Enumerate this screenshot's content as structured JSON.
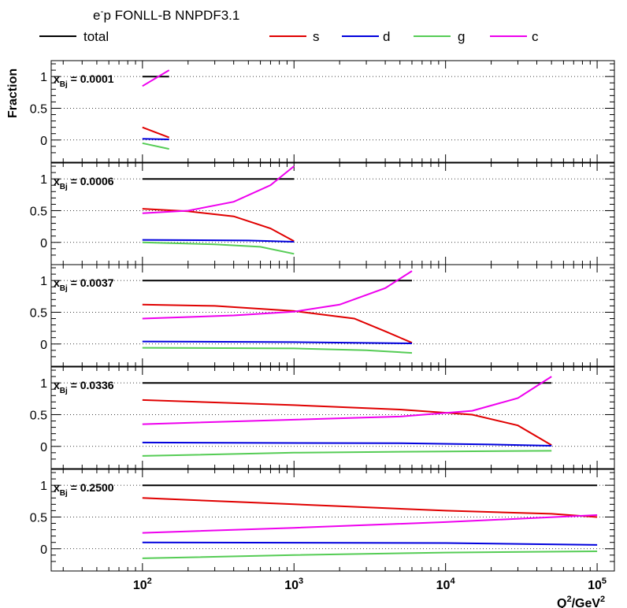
{
  "header": {
    "title_main": "e",
    "title_sup": "-",
    "title_rest": "p FONLL-B NNPDF3.1"
  },
  "legend": [
    {
      "name": "total",
      "color": "#000000"
    },
    {
      "name": "s",
      "color": "#e00000"
    },
    {
      "name": "d",
      "color": "#0000dd"
    },
    {
      "name": "g",
      "color": "#55cc55"
    },
    {
      "name": "c",
      "color": "#ee00ee"
    }
  ],
  "axes": {
    "ylabel": "Fraction",
    "xlabel_q": "Q",
    "xlabel_sup1": "2",
    "xlabel_mid": "/GeV",
    "xlabel_sup2": "2",
    "xtick_base": "10",
    "xtick_exps": [
      "2",
      "3",
      "4",
      "5"
    ],
    "ytick_labels": [
      "1",
      "0.5",
      "0"
    ]
  },
  "chart_data": {
    "type": "line",
    "x_scale": "log",
    "xlim": [
      25,
      130000
    ],
    "ylim": [
      -0.35,
      1.25
    ],
    "grid": "horizontal dotted",
    "panels": [
      {
        "label_pre": "x",
        "label_sub": "Bj",
        "label_val": " = 0.0001",
        "series": [
          {
            "name": "total",
            "points": [
              [
                100,
                1.0
              ],
              [
                150,
                1.0
              ]
            ]
          },
          {
            "name": "s",
            "points": [
              [
                100,
                0.2
              ],
              [
                150,
                0.04
              ]
            ]
          },
          {
            "name": "d",
            "points": [
              [
                100,
                0.02
              ],
              [
                150,
                0.01
              ]
            ]
          },
          {
            "name": "g",
            "points": [
              [
                100,
                -0.05
              ],
              [
                150,
                -0.14
              ]
            ]
          },
          {
            "name": "c",
            "points": [
              [
                100,
                0.85
              ],
              [
                150,
                1.1
              ]
            ]
          }
        ]
      },
      {
        "label_pre": "x",
        "label_sub": "Bj",
        "label_val": " = 0.0006",
        "series": [
          {
            "name": "total",
            "points": [
              [
                100,
                1.0
              ],
              [
                1000,
                1.0
              ]
            ]
          },
          {
            "name": "s",
            "points": [
              [
                100,
                0.53
              ],
              [
                200,
                0.49
              ],
              [
                400,
                0.41
              ],
              [
                700,
                0.22
              ],
              [
                1000,
                0.02
              ]
            ]
          },
          {
            "name": "d",
            "points": [
              [
                100,
                0.04
              ],
              [
                500,
                0.03
              ],
              [
                1000,
                0.01
              ]
            ]
          },
          {
            "name": "g",
            "points": [
              [
                100,
                0.0
              ],
              [
                300,
                -0.03
              ],
              [
                600,
                -0.07
              ],
              [
                1000,
                -0.18
              ]
            ]
          },
          {
            "name": "c",
            "points": [
              [
                100,
                0.46
              ],
              [
                200,
                0.5
              ],
              [
                400,
                0.64
              ],
              [
                700,
                0.9
              ],
              [
                1000,
                1.2
              ]
            ]
          }
        ]
      },
      {
        "label_pre": "x",
        "label_sub": "Bj",
        "label_val": " = 0.0037",
        "series": [
          {
            "name": "total",
            "points": [
              [
                100,
                1.0
              ],
              [
                6000,
                1.0
              ]
            ]
          },
          {
            "name": "s",
            "points": [
              [
                100,
                0.62
              ],
              [
                300,
                0.6
              ],
              [
                1000,
                0.52
              ],
              [
                2500,
                0.4
              ],
              [
                4000,
                0.2
              ],
              [
                6000,
                0.02
              ]
            ]
          },
          {
            "name": "d",
            "points": [
              [
                100,
                0.04
              ],
              [
                1000,
                0.03
              ],
              [
                6000,
                0.01
              ]
            ]
          },
          {
            "name": "g",
            "points": [
              [
                100,
                -0.06
              ],
              [
                1000,
                -0.07
              ],
              [
                3000,
                -0.1
              ],
              [
                6000,
                -0.14
              ]
            ]
          },
          {
            "name": "c",
            "points": [
              [
                100,
                0.4
              ],
              [
                400,
                0.45
              ],
              [
                1000,
                0.51
              ],
              [
                2000,
                0.62
              ],
              [
                4000,
                0.88
              ],
              [
                6000,
                1.15
              ]
            ]
          }
        ]
      },
      {
        "label_pre": "x",
        "label_sub": "Bj",
        "label_val": " = 0.0336",
        "series": [
          {
            "name": "total",
            "points": [
              [
                100,
                1.0
              ],
              [
                50000,
                1.0
              ]
            ]
          },
          {
            "name": "s",
            "points": [
              [
                100,
                0.73
              ],
              [
                1000,
                0.65
              ],
              [
                5000,
                0.58
              ],
              [
                15000,
                0.5
              ],
              [
                30000,
                0.33
              ],
              [
                50000,
                0.02
              ]
            ]
          },
          {
            "name": "d",
            "points": [
              [
                100,
                0.06
              ],
              [
                5000,
                0.05
              ],
              [
                20000,
                0.03
              ],
              [
                50000,
                0.01
              ]
            ]
          },
          {
            "name": "g",
            "points": [
              [
                100,
                -0.15
              ],
              [
                1000,
                -0.1
              ],
              [
                10000,
                -0.08
              ],
              [
                50000,
                -0.07
              ]
            ]
          },
          {
            "name": "c",
            "points": [
              [
                100,
                0.35
              ],
              [
                1000,
                0.42
              ],
              [
                5000,
                0.47
              ],
              [
                15000,
                0.56
              ],
              [
                30000,
                0.76
              ],
              [
                50000,
                1.1
              ]
            ]
          }
        ]
      },
      {
        "label_pre": "x",
        "label_sub": "Bj",
        "label_val": " = 0.2500",
        "series": [
          {
            "name": "total",
            "points": [
              [
                100,
                1.0
              ],
              [
                100000,
                1.0
              ]
            ]
          },
          {
            "name": "s",
            "points": [
              [
                100,
                0.8
              ],
              [
                1000,
                0.7
              ],
              [
                10000,
                0.6
              ],
              [
                50000,
                0.55
              ],
              [
                100000,
                0.5
              ]
            ]
          },
          {
            "name": "d",
            "points": [
              [
                100,
                0.1
              ],
              [
                10000,
                0.09
              ],
              [
                100000,
                0.06
              ]
            ]
          },
          {
            "name": "g",
            "points": [
              [
                100,
                -0.15
              ],
              [
                1000,
                -0.1
              ],
              [
                10000,
                -0.06
              ],
              [
                100000,
                -0.04
              ]
            ]
          },
          {
            "name": "c",
            "points": [
              [
                100,
                0.25
              ],
              [
                1000,
                0.33
              ],
              [
                10000,
                0.42
              ],
              [
                100000,
                0.53
              ]
            ]
          }
        ]
      }
    ]
  }
}
